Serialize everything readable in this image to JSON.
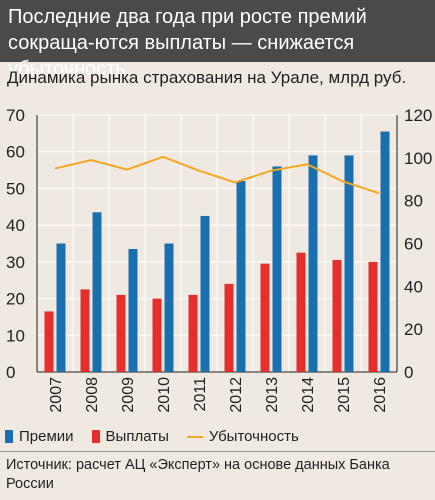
{
  "headline": "Последние два года при росте премий сокраща-ются выплаты — снижается убыточность",
  "chart_data": {
    "type": "bar",
    "title": "Динамика рынка страхования на Урале, млрд руб.",
    "categories": [
      "2007",
      "2008",
      "2009",
      "2010",
      "2011",
      "2012",
      "2013",
      "2014",
      "2015",
      "2016"
    ],
    "series": [
      {
        "name": "Премии",
        "type": "bar",
        "axis": "left",
        "color": "#1a6fb0",
        "values": [
          35,
          43.5,
          33.5,
          35,
          42.5,
          52,
          56,
          59,
          59,
          65.5
        ]
      },
      {
        "name": "Выплаты",
        "type": "bar",
        "axis": "left",
        "color": "#e52f2c",
        "values": [
          16.5,
          22.5,
          21,
          20,
          21,
          24,
          29.5,
          32.5,
          30.5,
          30
        ]
      },
      {
        "name": "Убыточность",
        "type": "line",
        "axis": "right",
        "color": "#f5a623",
        "values": [
          95,
          99,
          94.5,
          100.5,
          94,
          88.5,
          94,
          97,
          89,
          83.5
        ]
      }
    ],
    "left_axis": {
      "min": 0,
      "max": 70,
      "ticks": [
        0,
        10,
        20,
        30,
        40,
        50,
        60,
        70
      ]
    },
    "right_axis": {
      "min": 0,
      "max": 120,
      "ticks": [
        0,
        20,
        40,
        60,
        80,
        100,
        120
      ]
    },
    "grid": true,
    "legend_position": "bottom-left"
  },
  "legend": [
    {
      "label": "Премии",
      "color": "#1a6fb0",
      "kind": "bar"
    },
    {
      "label": "Выплаты",
      "color": "#e52f2c",
      "kind": "bar"
    },
    {
      "label": "Убыточность",
      "color": "#f5a623",
      "kind": "line"
    }
  ],
  "source": "Источник: расчет АЦ «Эксперт» на основе данных Банка России"
}
